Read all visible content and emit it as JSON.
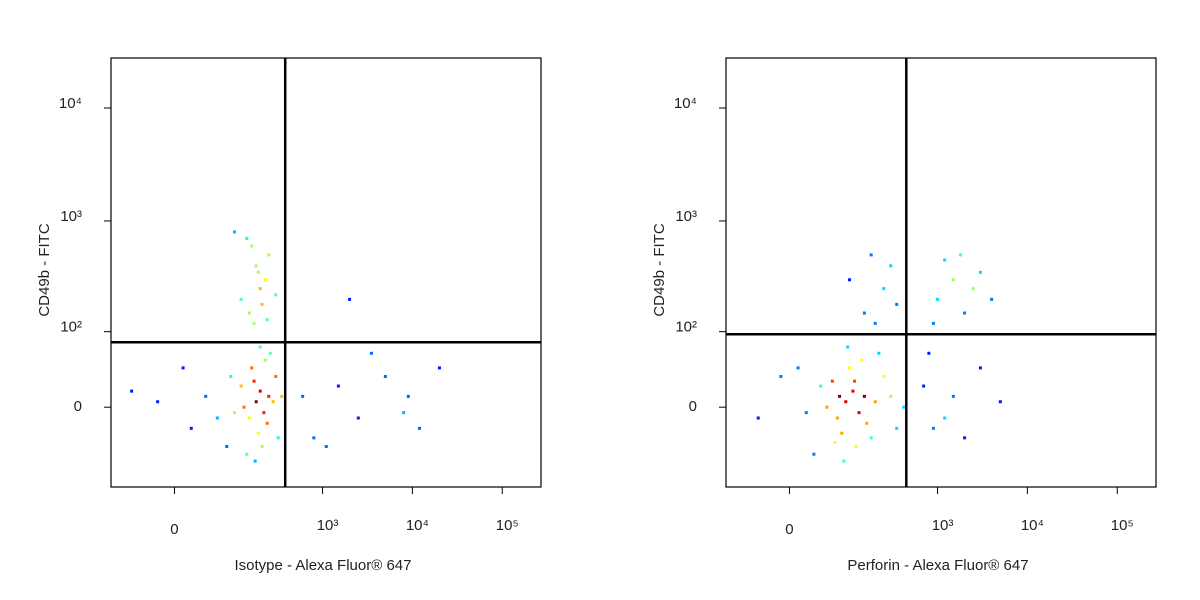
{
  "chart_data": [
    {
      "type": "scatter",
      "xlabel": "Isotype - Alexa Fluor® 647",
      "ylabel": "CD49b - FITC",
      "xscale": "biexponential",
      "yscale": "biexponential",
      "xlim": [
        -110,
        270000
      ],
      "ylim": [
        -110,
        27700
      ],
      "xticks": [
        0,
        {
          "value": 1000,
          "label": "10³"
        },
        {
          "value": 10000,
          "label": "10⁴"
        },
        {
          "value": 100000,
          "label": "10⁵"
        }
      ],
      "yticks": [
        0,
        {
          "value": 100,
          "label": "10²"
        },
        {
          "value": 1000,
          "label": "10³"
        },
        {
          "value": 10000,
          "label": "10⁴"
        }
      ],
      "quadrant": {
        "x": 383,
        "y": 78.5
      },
      "x": [
        180,
        150,
        200,
        220,
        170,
        130,
        250,
        190,
        160,
        210,
        120,
        240,
        280,
        100,
        300,
        140,
        230,
        175,
        90,
        60,
        40,
        20,
        -20,
        -60,
        10,
        320,
        350,
        80,
        260,
        200,
        150,
        200,
        180,
        230,
        160,
        250,
        120,
        210,
        190,
        140,
        100,
        240,
        300,
        170,
        1500,
        2500,
        5000,
        8000,
        9000,
        12000,
        20000,
        600,
        800,
        3500,
        1100,
        2000
      ],
      "y": [
        5,
        -10,
        15,
        -5,
        25,
        0,
        10,
        -25,
        40,
        -40,
        20,
        -15,
        5,
        -5,
        30,
        -50,
        50,
        -60,
        30,
        -10,
        10,
        -20,
        5,
        15,
        40,
        -30,
        10,
        -40,
        60,
        70,
        150,
        250,
        400,
        300,
        600,
        500,
        200,
        180,
        350,
        700,
        800,
        130,
        220,
        120,
        20,
        -10,
        30,
        -5,
        10,
        -20,
        40,
        10,
        -30,
        60,
        -40,
        200
      ]
    },
    {
      "type": "scatter",
      "xlabel": "Perforin - Alexa Fluor® 647",
      "ylabel": "CD49b - FITC",
      "xscale": "biexponential",
      "yscale": "biexponential",
      "xlim": [
        -110,
        270000
      ],
      "ylim": [
        -110,
        27700
      ],
      "xticks": [
        0,
        {
          "value": 1000,
          "label": "10³"
        },
        {
          "value": 10000,
          "label": "10⁴"
        },
        {
          "value": 100000,
          "label": "10⁵"
        }
      ],
      "yticks": [
        0,
        {
          "value": 100,
          "label": "10²"
        },
        {
          "value": 1000,
          "label": "10³"
        },
        {
          "value": 10000,
          "label": "10⁴"
        }
      ],
      "quadrant": {
        "x": 448,
        "y": 94.5
      },
      "x": [
        90,
        70,
        110,
        130,
        60,
        50,
        150,
        80,
        100,
        120,
        40,
        160,
        200,
        20,
        250,
        30,
        140,
        85,
        -10,
        -40,
        180,
        300,
        350,
        10,
        220,
        95,
        420,
        65,
        115,
        75,
        150,
        250,
        200,
        300,
        100,
        350,
        180,
        1000,
        1500,
        2000,
        1200,
        2500,
        3000,
        900,
        1800,
        4000,
        700,
        900,
        1500,
        2000,
        3000,
        800,
        5000,
        1200
      ],
      "y": [
        5,
        -10,
        15,
        -5,
        25,
        0,
        10,
        -25,
        40,
        -40,
        20,
        -15,
        5,
        -5,
        30,
        -50,
        50,
        -60,
        30,
        -10,
        -30,
        10,
        -20,
        40,
        60,
        70,
        0,
        -35,
        25,
        10,
        150,
        250,
        120,
        400,
        300,
        180,
        500,
        200,
        300,
        150,
        450,
        250,
        350,
        120,
        500,
        200,
        20,
        -20,
        10,
        -30,
        40,
        60,
        5,
        -10
      ]
    }
  ]
}
